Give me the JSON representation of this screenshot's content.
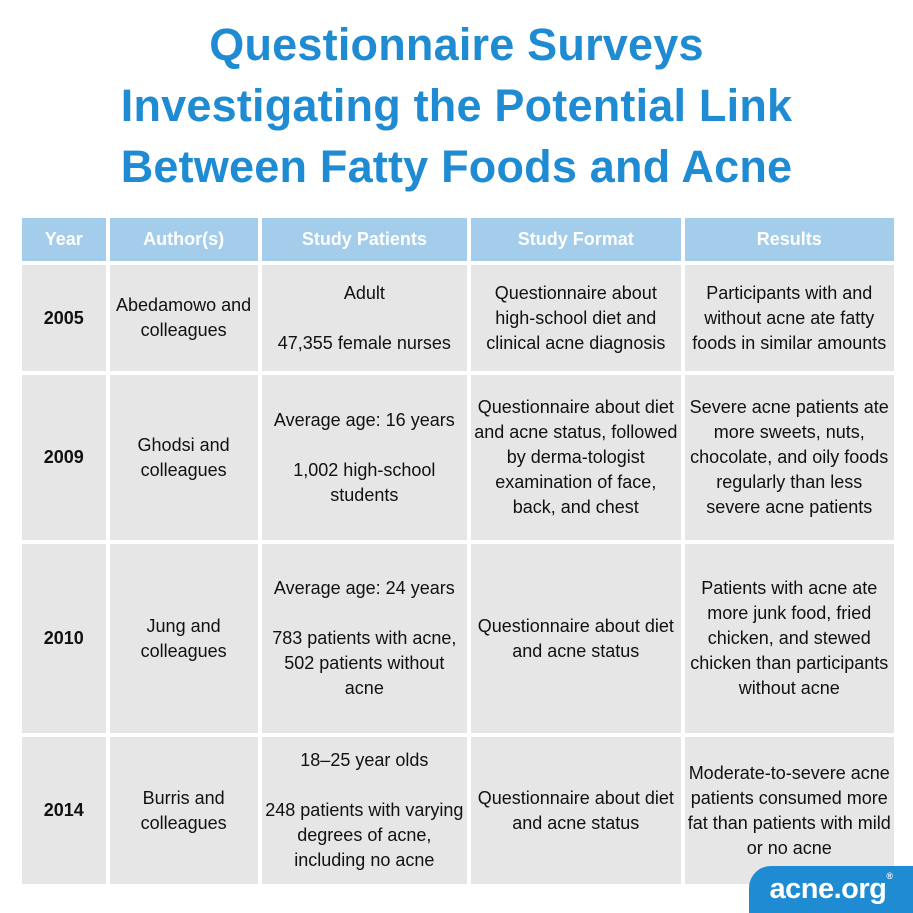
{
  "title": {
    "lines": [
      "Questionnaire Surveys",
      "Investigating the Potential Link",
      "Between Fatty Foods and Acne"
    ]
  },
  "table": {
    "headers": [
      "Year",
      "Author(s)",
      "Study Patients",
      "Study Format",
      "Results"
    ],
    "rows": [
      {
        "year": "2005",
        "authors": "Abedamowo and colleagues",
        "patients": [
          "Adult",
          "",
          "47,355 female nurses"
        ],
        "format": "Questionnaire about high-school diet and clinical acne diagnosis",
        "results": "Participants with and without acne ate fatty foods in similar amounts"
      },
      {
        "year": "2009",
        "authors": "Ghodsi and colleagues",
        "patients": [
          "Average age: 16 years",
          "",
          "1,002 high-school students"
        ],
        "format": "Questionnaire about diet and acne status, followed by derma-tologist examination of face, back, and chest",
        "results": "Severe acne patients ate more sweets, nuts, chocolate, and oily foods regularly than less severe acne patients"
      },
      {
        "year": "2010",
        "authors": "Jung and colleagues",
        "patients": [
          "Average age: 24 years",
          "",
          "783 patients with acne, 502 patients without acne"
        ],
        "format": "Questionnaire about diet and acne status",
        "results": "Patients with acne ate more junk food, fried chicken, and stewed chicken than participants without acne"
      },
      {
        "year": "2014",
        "authors": "Burris and colleagues",
        "patients": [
          "18–25 year olds",
          "",
          "248 patients with varying degrees of acne, including no acne"
        ],
        "format": "Questionnaire about diet and acne status",
        "results": "Moderate-to-severe acne patients consumed more fat than patients with mild or no acne"
      }
    ]
  },
  "logo": {
    "text": "acne.org",
    "mark": "®"
  },
  "colors": {
    "title": "#1e8bd2",
    "header_bg": "#a3cdeb",
    "cell_bg": "#e6e6e6",
    "logo_bg": "#1e8bd2"
  }
}
